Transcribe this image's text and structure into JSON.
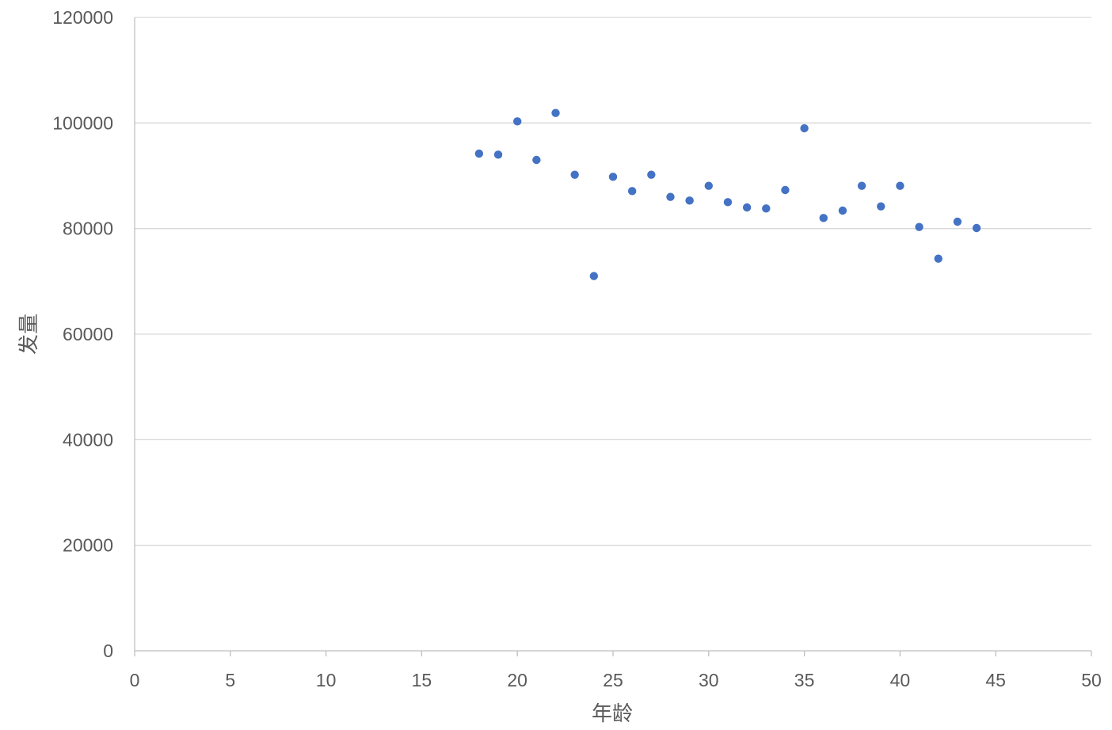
{
  "chart_data": {
    "type": "scatter",
    "title": "",
    "xlabel": "年龄",
    "ylabel": "发量",
    "xlim": [
      0,
      50
    ],
    "ylim": [
      0,
      120000
    ],
    "x_ticks": [
      0,
      5,
      10,
      15,
      20,
      25,
      30,
      35,
      40,
      45,
      50
    ],
    "y_ticks": [
      0,
      20000,
      40000,
      60000,
      80000,
      100000,
      120000
    ],
    "grid": "horizontal",
    "legend": "none",
    "marker_color": "#4472C4",
    "grid_color": "#D9D9D9",
    "axis_color": "#BFBFBF",
    "series": [
      {
        "x": [
          18,
          19,
          20,
          21,
          22,
          23,
          24,
          25,
          26,
          27,
          28,
          29,
          30,
          31,
          32,
          33,
          34,
          35,
          36,
          37,
          38,
          39,
          40,
          41,
          42,
          43,
          44
        ],
        "y": [
          94200,
          94000,
          100300,
          93000,
          101900,
          90200,
          71000,
          89800,
          87100,
          90200,
          86000,
          85300,
          88100,
          85000,
          84000,
          83800,
          87300,
          99000,
          82000,
          83400,
          88100,
          84200,
          88100,
          80300,
          74300,
          81300,
          80100
        ]
      }
    ]
  }
}
